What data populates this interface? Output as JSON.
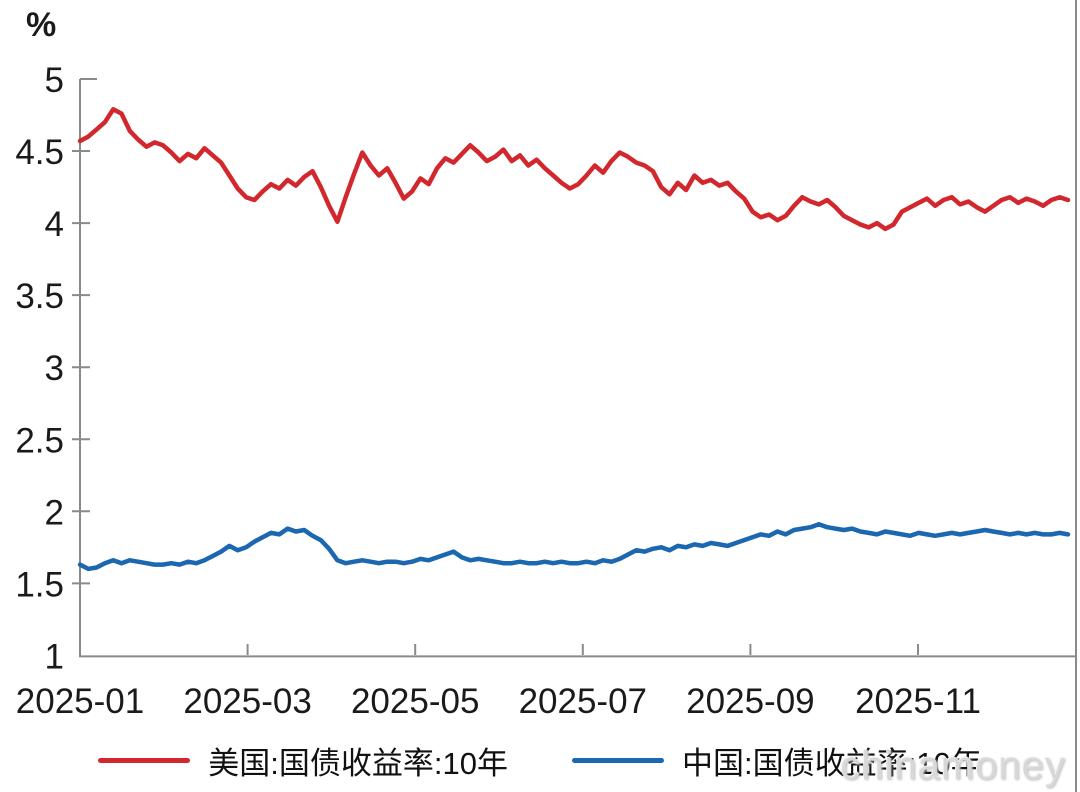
{
  "watermark": "chinamoney",
  "chart_data": {
    "type": "line",
    "title": "",
    "unit_label": "%",
    "xlabel": "",
    "ylabel": "%",
    "ylim": [
      1,
      5
    ],
    "yticks": [
      5,
      4.5,
      4,
      3.5,
      3,
      2.5,
      2,
      1.5,
      1
    ],
    "xticks": [
      {
        "label": "2025-01",
        "month": 0
      },
      {
        "label": "2025-03",
        "month": 2
      },
      {
        "label": "2025-05",
        "month": 4
      },
      {
        "label": "2025-07",
        "month": 6
      },
      {
        "label": "2025-09",
        "month": 8
      },
      {
        "label": "2025-11",
        "month": 10
      }
    ],
    "x_span_months": 11.8,
    "grid": false,
    "legend_position": "bottom",
    "axis_color": "#8a8a8a",
    "series": [
      {
        "name": "美国:国债收益率:10年",
        "color": "#d2282d",
        "values": [
          4.57,
          4.6,
          4.65,
          4.7,
          4.79,
          4.76,
          4.64,
          4.58,
          4.53,
          4.56,
          4.54,
          4.49,
          4.43,
          4.48,
          4.45,
          4.52,
          4.47,
          4.42,
          4.33,
          4.24,
          4.18,
          4.16,
          4.22,
          4.27,
          4.24,
          4.3,
          4.26,
          4.32,
          4.36,
          4.25,
          4.12,
          4.01,
          4.18,
          4.34,
          4.49,
          4.4,
          4.33,
          4.38,
          4.28,
          4.17,
          4.22,
          4.31,
          4.27,
          4.38,
          4.45,
          4.42,
          4.48,
          4.54,
          4.49,
          4.43,
          4.46,
          4.51,
          4.43,
          4.47,
          4.4,
          4.44,
          4.38,
          4.33,
          4.28,
          4.24,
          4.27,
          4.33,
          4.4,
          4.35,
          4.43,
          4.49,
          4.46,
          4.42,
          4.4,
          4.36,
          4.25,
          4.2,
          4.28,
          4.23,
          4.33,
          4.28,
          4.3,
          4.26,
          4.28,
          4.22,
          4.17,
          4.08,
          4.04,
          4.06,
          4.02,
          4.05,
          4.12,
          4.18,
          4.15,
          4.13,
          4.16,
          4.11,
          4.05,
          4.02,
          3.99,
          3.97,
          4.0,
          3.96,
          3.99,
          4.08,
          4.11,
          4.14,
          4.17,
          4.12,
          4.16,
          4.18,
          4.13,
          4.15,
          4.11,
          4.08,
          4.12,
          4.16,
          4.18,
          4.14,
          4.17,
          4.15,
          4.12,
          4.16,
          4.18,
          4.16
        ]
      },
      {
        "name": "中国:国债收益率:10年",
        "color": "#1b67b0",
        "values": [
          1.63,
          1.6,
          1.61,
          1.64,
          1.66,
          1.64,
          1.66,
          1.65,
          1.64,
          1.63,
          1.63,
          1.64,
          1.63,
          1.65,
          1.64,
          1.66,
          1.69,
          1.72,
          1.76,
          1.73,
          1.75,
          1.79,
          1.82,
          1.85,
          1.84,
          1.88,
          1.86,
          1.87,
          1.83,
          1.8,
          1.74,
          1.66,
          1.64,
          1.65,
          1.66,
          1.65,
          1.64,
          1.65,
          1.65,
          1.64,
          1.65,
          1.67,
          1.66,
          1.68,
          1.7,
          1.72,
          1.68,
          1.66,
          1.67,
          1.66,
          1.65,
          1.64,
          1.64,
          1.65,
          1.64,
          1.64,
          1.65,
          1.64,
          1.65,
          1.64,
          1.64,
          1.65,
          1.64,
          1.66,
          1.65,
          1.67,
          1.7,
          1.73,
          1.72,
          1.74,
          1.75,
          1.73,
          1.76,
          1.75,
          1.77,
          1.76,
          1.78,
          1.77,
          1.76,
          1.78,
          1.8,
          1.82,
          1.84,
          1.83,
          1.86,
          1.84,
          1.87,
          1.88,
          1.89,
          1.91,
          1.89,
          1.88,
          1.87,
          1.88,
          1.86,
          1.85,
          1.84,
          1.86,
          1.85,
          1.84,
          1.83,
          1.85,
          1.84,
          1.83,
          1.84,
          1.85,
          1.84,
          1.85,
          1.86,
          1.87,
          1.86,
          1.85,
          1.84,
          1.85,
          1.84,
          1.85,
          1.84,
          1.84,
          1.85,
          1.84
        ]
      }
    ]
  }
}
